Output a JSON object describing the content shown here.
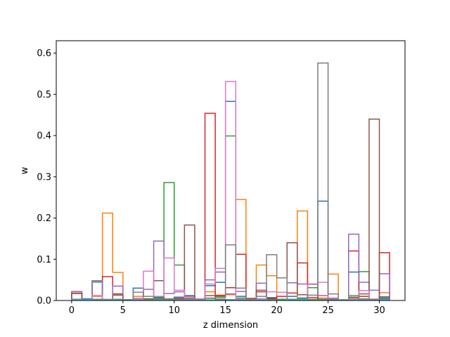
{
  "chart_data": {
    "type": "step-histogram",
    "xlabel": "z dimension",
    "ylabel": "w",
    "xlim": [
      -1.5,
      32.5
    ],
    "ylim": [
      0,
      0.63
    ],
    "xticks": [
      0,
      5,
      10,
      15,
      20,
      25,
      30
    ],
    "yticks": [
      0.0,
      0.1,
      0.2,
      0.3,
      0.4,
      0.5,
      0.6
    ],
    "grid": false,
    "legend": "none",
    "bin_width": 1,
    "series": [
      {
        "color": "#1f77b4",
        "values": [
          0.003,
          0.004,
          0.045,
          0.002,
          0.003,
          0.001,
          0.03,
          0.003,
          0.008,
          0.003,
          0.008,
          0.012,
          0.002,
          0.036,
          0.044,
          0.483,
          0.01,
          0.001,
          0.004,
          0.007,
          0.002,
          0.01,
          0.006,
          0.003,
          0.241,
          0.004,
          0.001,
          0.069,
          0.003,
          0.001,
          0.009
        ]
      },
      {
        "color": "#ff7f0e",
        "values": [
          0.002,
          0.001,
          0.01,
          0.212,
          0.068,
          0.002,
          0.01,
          0.004,
          0.005,
          0.002,
          0.003,
          0.002,
          0.003,
          0.021,
          0.013,
          0.014,
          0.245,
          0.003,
          0.086,
          0.06,
          0.003,
          0.003,
          0.217,
          0.003,
          0.006,
          0.064,
          0.001,
          0.004,
          0.003,
          0.003,
          0.019
        ]
      },
      {
        "color": "#2ca02c",
        "values": [
          0.001,
          0.002,
          0.045,
          0.003,
          0.002,
          0.001,
          0.003,
          0.004,
          0.006,
          0.286,
          0.086,
          0.003,
          0.002,
          0.005,
          0.01,
          0.399,
          0.006,
          0.002,
          0.004,
          0.004,
          0.003,
          0.002,
          0.003,
          0.031,
          0.003,
          0.001,
          0.002,
          0.008,
          0.07,
          0.002,
          0.002
        ]
      },
      {
        "color": "#d62728",
        "values": [
          0.017,
          0.002,
          0.002,
          0.058,
          0.016,
          0.002,
          0.002,
          0.003,
          0.003,
          0.004,
          0.005,
          0.006,
          0.004,
          0.454,
          0.012,
          0.031,
          0.112,
          0.005,
          0.021,
          0.005,
          0.01,
          0.018,
          0.091,
          0.007,
          0.003,
          0.004,
          0.002,
          0.12,
          0.01,
          0.003,
          0.116
        ]
      },
      {
        "color": "#9467bd",
        "values": [
          0.022,
          0.002,
          0.048,
          0.002,
          0.035,
          0.001,
          0.005,
          0.027,
          0.144,
          0.017,
          0.021,
          0.01,
          0.003,
          0.05,
          0.069,
          0.016,
          0.022,
          0.003,
          0.042,
          0.002,
          0.002,
          0.043,
          0.04,
          0.04,
          0.012,
          0.003,
          0.001,
          0.161,
          0.044,
          0.025,
          0.065
        ]
      },
      {
        "color": "#8c564b",
        "values": [
          0.018,
          0.001,
          0.002,
          0.003,
          0.013,
          0.001,
          0.003,
          0.002,
          0.048,
          0.001,
          0.003,
          0.183,
          0.002,
          0.012,
          0.003,
          0.002,
          0.003,
          0.002,
          0.025,
          0.003,
          0.002,
          0.14,
          0.014,
          0.002,
          0.003,
          0.002,
          0.001,
          0.007,
          0.016,
          0.44,
          0.006
        ]
      },
      {
        "color": "#e377c2",
        "values": [
          0.002,
          0.002,
          0.012,
          0.003,
          0.003,
          0.001,
          0.004,
          0.071,
          0.01,
          0.103,
          0.025,
          0.002,
          0.004,
          0.04,
          0.078,
          0.531,
          0.004,
          0.002,
          0.004,
          0.021,
          0.02,
          0.002,
          0.002,
          0.039,
          0.044,
          0.006,
          0.002,
          0.003,
          0.024,
          0.002,
          0.001
        ]
      },
      {
        "color": "#7f7f7f",
        "values": [
          0.001,
          0.001,
          0.003,
          0.002,
          0.003,
          0.001,
          0.02,
          0.01,
          0.004,
          0.004,
          0.002,
          0.003,
          0.002,
          0.006,
          0.007,
          0.135,
          0.03,
          0.002,
          0.01,
          0.111,
          0.055,
          0.003,
          0.002,
          0.013,
          0.576,
          0.016,
          0.001,
          0.012,
          0.004,
          0.002,
          0.004
        ]
      },
      {
        "color": "#bcbd22",
        "values": [
          0.001,
          0.001,
          0.001,
          0.001,
          0.001,
          0.001,
          0.001,
          0.001,
          0.001,
          0.001,
          0.001,
          0.001,
          0.001,
          0.001,
          0.001,
          0.001,
          0.001,
          0.001,
          0.001,
          0.001,
          0.001,
          0.001,
          0.001,
          0.001,
          0.001,
          0.001,
          0.001,
          0.001,
          0.001,
          0.001,
          0.001
        ]
      },
      {
        "color": "#17becf",
        "values": [
          0.001,
          0.001,
          0.001,
          0.001,
          0.001,
          0.001,
          0.001,
          0.001,
          0.001,
          0.001,
          0.001,
          0.001,
          0.001,
          0.001,
          0.001,
          0.001,
          0.001,
          0.001,
          0.001,
          0.001,
          0.001,
          0.001,
          0.001,
          0.001,
          0.001,
          0.001,
          0.001,
          0.001,
          0.001,
          0.001,
          0.001
        ]
      }
    ]
  }
}
